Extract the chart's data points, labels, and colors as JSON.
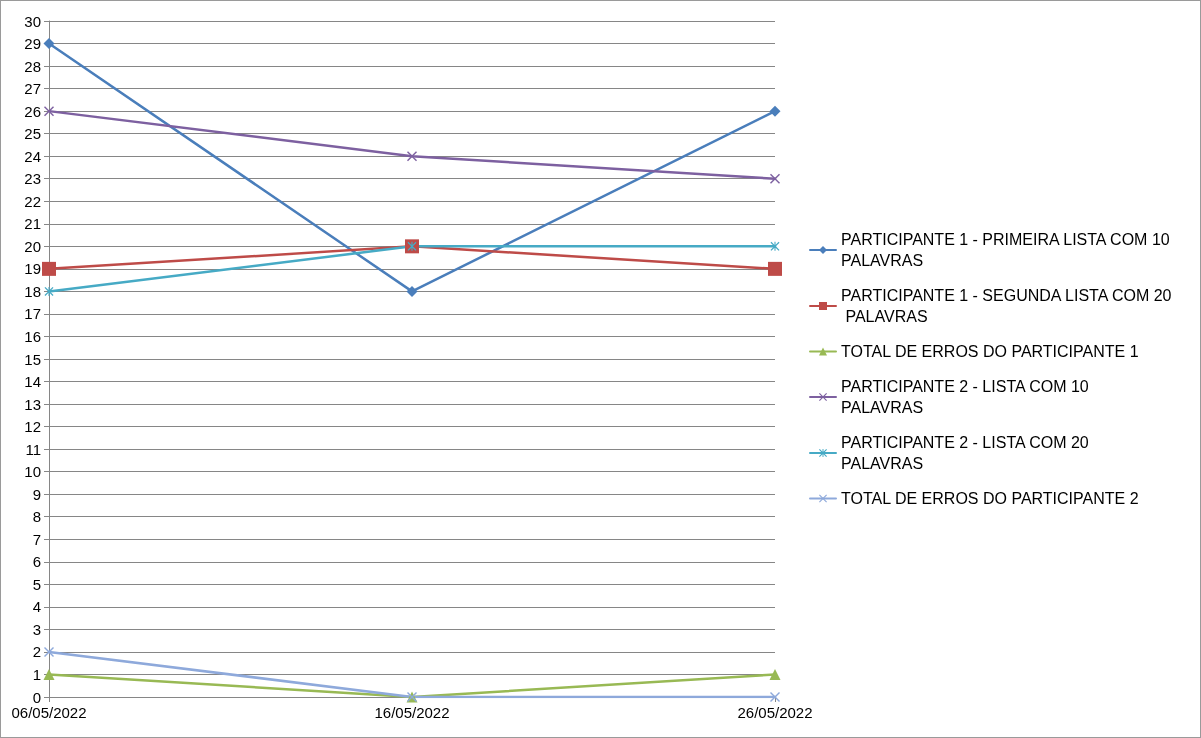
{
  "chart_data": {
    "type": "line",
    "categories": [
      "06/05/2022",
      "16/05/2022",
      "26/05/2022"
    ],
    "ylim": [
      0,
      30
    ],
    "yticks": [
      0,
      1,
      2,
      3,
      4,
      5,
      6,
      7,
      8,
      9,
      10,
      11,
      12,
      13,
      14,
      15,
      16,
      17,
      18,
      19,
      20,
      21,
      22,
      23,
      24,
      25,
      26,
      27,
      28,
      29,
      30
    ],
    "grid": "y",
    "legend": "right",
    "series": [
      {
        "name": "PARTICIPANTE 1 - PRIMEIRA LISTA COM 10 PALAVRAS",
        "color": "#4a7ebb",
        "marker": "diamond",
        "values": [
          29,
          18,
          26
        ]
      },
      {
        "name": "PARTICIPANTE 1 - SEGUNDA LISTA COM 20 PALAVRAS",
        "color": "#be4b48",
        "marker": "square",
        "values": [
          19,
          20,
          19
        ]
      },
      {
        "name": "TOTAL DE ERROS DO PARTICIPANTE 1",
        "color": "#98b954",
        "marker": "triangle",
        "values": [
          1,
          0,
          1
        ]
      },
      {
        "name": "PARTICIPANTE 2 - LISTA COM 10 PALAVRAS",
        "color": "#7d60a0",
        "marker": "cross",
        "values": [
          26,
          24,
          23
        ]
      },
      {
        "name": "PARTICIPANTE 2 - LISTA COM 20 PALAVRAS",
        "color": "#46aac5",
        "marker": "star",
        "values": [
          18,
          20,
          20
        ]
      },
      {
        "name": "TOTAL DE ERROS DO PARTICIPANTE 2",
        "color": "#8ea9db",
        "marker": "cross",
        "values": [
          2,
          0,
          0
        ]
      }
    ]
  }
}
